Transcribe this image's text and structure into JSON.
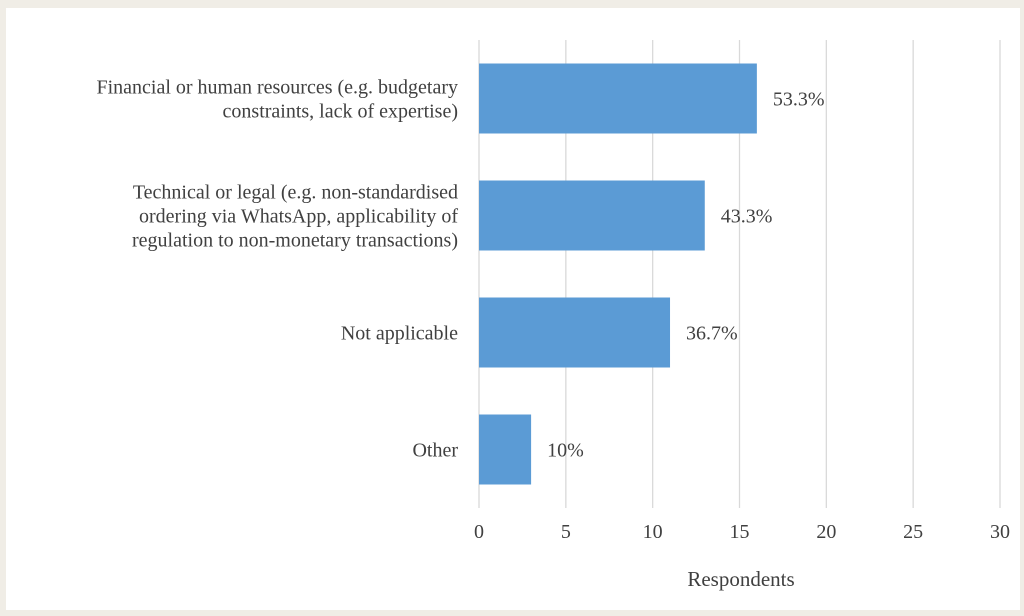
{
  "chart_data": {
    "type": "bar",
    "orientation": "horizontal",
    "categories": [
      [
        "Financial or human resources (e.g. budgetary",
        "constraints, lack of expertise)"
      ],
      [
        "Technical or legal (e.g. non-standardised",
        "ordering via WhatsApp, applicability of",
        "regulation to non-monetary transactions)"
      ],
      [
        "Not applicable"
      ],
      [
        "Other"
      ]
    ],
    "series": [
      {
        "values": [
          16,
          13,
          11,
          3
        ],
        "data_labels": [
          "53.3%",
          "43.3%",
          "36.7%",
          "10%"
        ],
        "color": "#5b9bd5"
      }
    ],
    "xlabel": "Respondents",
    "ylabel": "",
    "title": "",
    "xlim": [
      0,
      30
    ],
    "xticks": [
      "0",
      "5",
      "10",
      "15",
      "20",
      "25",
      "30"
    ],
    "grid": "vertical",
    "legend": "none"
  }
}
